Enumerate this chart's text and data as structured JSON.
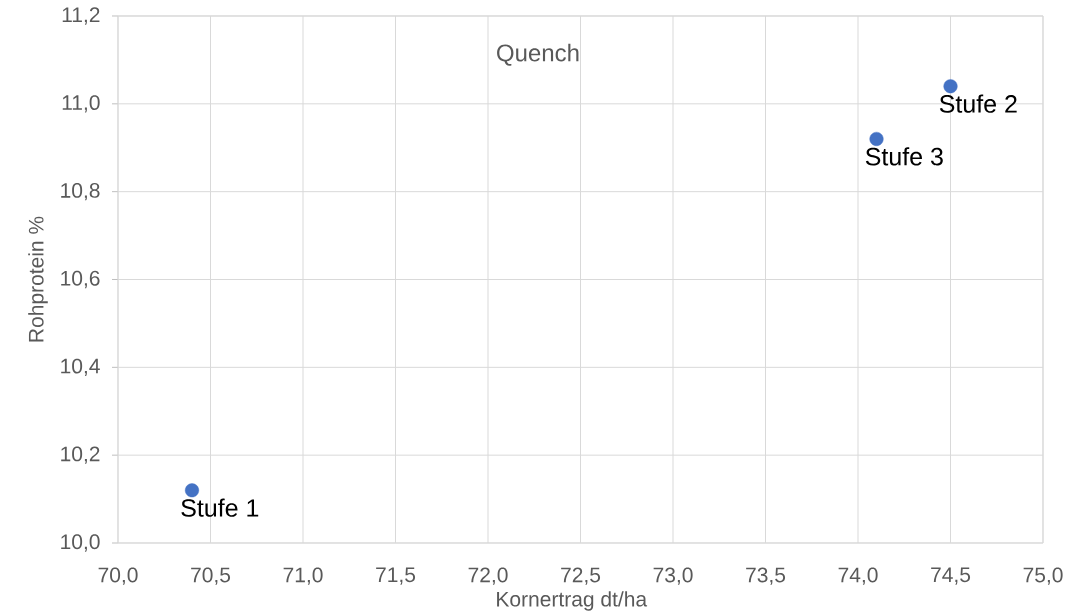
{
  "chart_data": {
    "type": "scatter",
    "title": "Quench",
    "xlabel": "Kornertrag dt/ha",
    "ylabel": "Rohprotein %",
    "x": [
      70.4,
      74.5,
      74.1
    ],
    "series": [
      {
        "color": "#4472c4",
        "values": [
          10.12,
          11.04,
          10.92
        ]
      }
    ],
    "xlim": [
      70,
      75
    ],
    "xticks": [
      {
        "value": 70,
        "label": "70,0"
      },
      {
        "value": 70.5,
        "label": "70,5"
      },
      {
        "value": 71,
        "label": "71,0"
      },
      {
        "value": 71.5,
        "label": "71,5"
      },
      {
        "value": 72,
        "label": "72,0"
      },
      {
        "value": 72.5,
        "label": "72,5"
      },
      {
        "value": 73,
        "label": "73,0"
      },
      {
        "value": 73.5,
        "label": "73,5"
      },
      {
        "value": 74,
        "label": "74,0"
      },
      {
        "value": 74.5,
        "label": "74,5"
      },
      {
        "value": 75,
        "label": "75,0"
      }
    ],
    "ylim": [
      10,
      11.2
    ],
    "yticks": [
      {
        "value": 10,
        "label": "10,0"
      },
      {
        "value": 10.2,
        "label": "10,2"
      },
      {
        "value": 10.4,
        "label": "10,4"
      },
      {
        "value": 10.6,
        "label": "10,6"
      },
      {
        "value": 10.8,
        "label": "10,8"
      },
      {
        "value": 11,
        "label": "11,0"
      },
      {
        "value": 11.2,
        "label": "11,2"
      }
    ],
    "annotations": [
      {
        "text": "Stufe 1",
        "x": 70.4,
        "y": 10.12
      },
      {
        "text": "Stufe 2",
        "x": 74.5,
        "y": 11.04
      },
      {
        "text": "Stufe 3",
        "x": 74.1,
        "y": 10.92
      }
    ],
    "grid": true,
    "marker": "circle"
  }
}
